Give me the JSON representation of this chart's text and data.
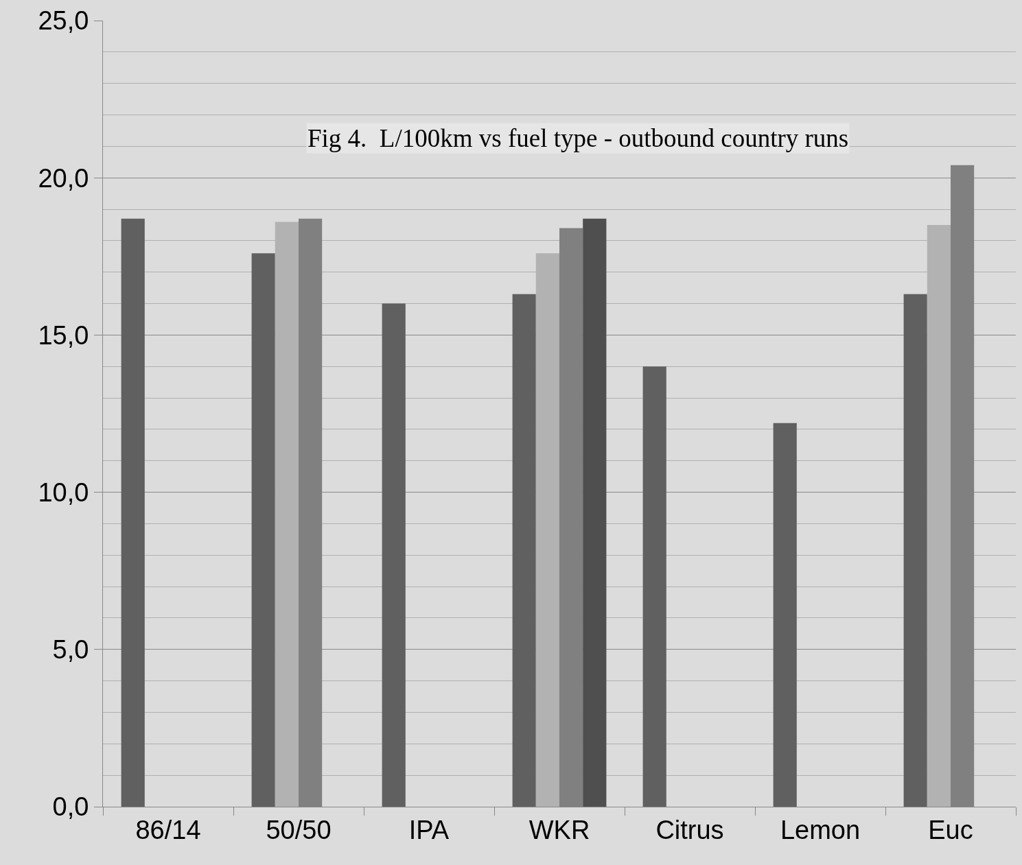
{
  "chart_data": {
    "type": "bar",
    "title": "Fig 4.  L/100km vs fuel type - outbound country runs",
    "categories": [
      "86/14",
      "50/50",
      "IPA",
      "WKR",
      "Citrus",
      "Lemon",
      "Euc"
    ],
    "series": [
      {
        "color": "#606060",
        "values": [
          18.7,
          17.6,
          16.0,
          16.3,
          14.0,
          12.2,
          16.3
        ]
      },
      {
        "color": "#b2b2b2",
        "values": [
          null,
          18.6,
          null,
          17.6,
          null,
          null,
          18.5
        ]
      },
      {
        "color": "#808080",
        "values": [
          null,
          18.7,
          null,
          18.4,
          null,
          null,
          20.4
        ]
      },
      {
        "color": "#4f4f4f",
        "values": [
          null,
          null,
          null,
          18.7,
          null,
          null,
          null
        ]
      }
    ],
    "ylim": [
      0,
      25
    ],
    "yticks": [
      {
        "value": 0,
        "label": "0,0"
      },
      {
        "value": 5,
        "label": "5,0"
      },
      {
        "value": 10,
        "label": "10,0"
      },
      {
        "value": 15,
        "label": "15,0"
      },
      {
        "value": 20,
        "label": "20,0"
      },
      {
        "value": 25,
        "label": "25,0"
      }
    ],
    "grid": "y"
  }
}
